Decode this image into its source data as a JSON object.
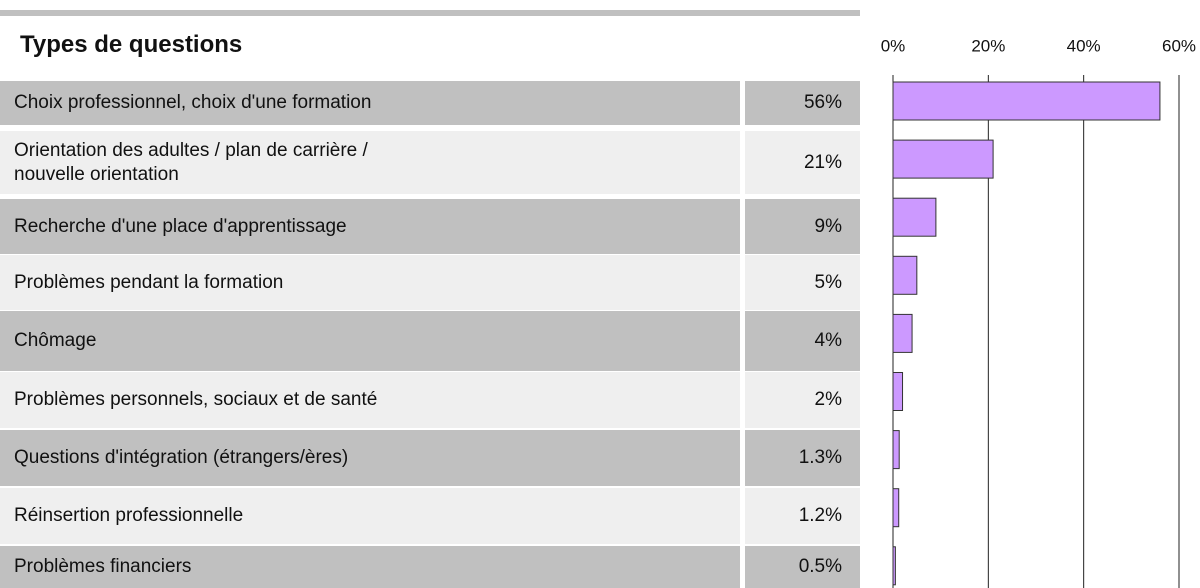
{
  "chart_data": {
    "type": "bar",
    "orientation": "horizontal",
    "title": "Types de questions",
    "categories": [
      "Choix professionnel, choix d'une formation",
      "Orientation des adultes / plan de carrière /\nnouvelle orientation",
      "Recherche d'une place d'apprentissage",
      "Problèmes pendant la formation",
      "Chômage",
      "Problèmes personnels, sociaux et de santé",
      "Questions d'intégration (étrangers/ères)",
      "Réinsertion professionnelle",
      "Problèmes financiers"
    ],
    "values": [
      56,
      21,
      9,
      5,
      4,
      2,
      1.3,
      1.2,
      0.5
    ],
    "value_labels": [
      "56%",
      "21%",
      "9%",
      "5%",
      "4%",
      "2%",
      "1.3%",
      "1.2%",
      "0.5%"
    ],
    "color": "#cc99ff",
    "xlim": [
      0,
      60
    ],
    "xticks": [
      {
        "value": 0,
        "label": "0%"
      },
      {
        "value": 20,
        "label": "20%"
      },
      {
        "value": 40,
        "label": "40%"
      },
      {
        "value": 60,
        "label": "60%"
      }
    ],
    "grid": true
  }
}
